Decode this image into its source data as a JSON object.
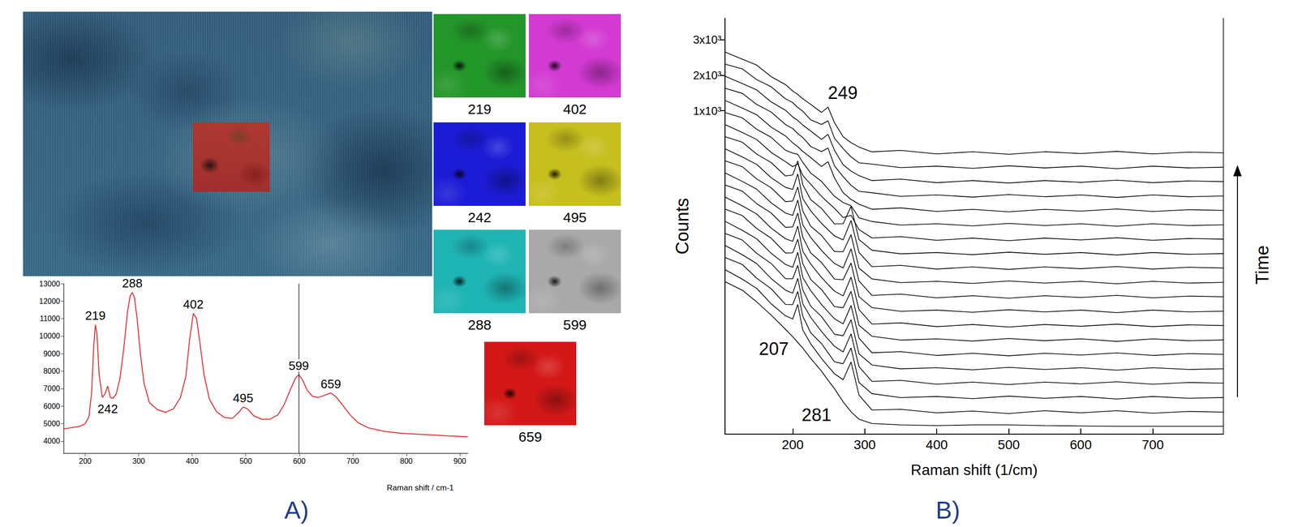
{
  "chart_data": [
    {
      "panel": "A)",
      "type": "line",
      "color": "#e32b2b",
      "x": [
        160,
        170,
        180,
        190,
        200,
        207,
        212,
        216,
        219,
        222,
        226,
        232,
        237,
        242,
        247,
        252,
        258,
        265,
        272,
        279,
        284,
        288,
        292,
        297,
        303,
        310,
        320,
        335,
        350,
        365,
        378,
        388,
        395,
        402,
        408,
        414,
        422,
        432,
        445,
        460,
        475,
        487,
        495,
        503,
        515,
        530,
        545,
        560,
        572,
        584,
        593,
        599,
        606,
        615,
        625,
        635,
        645,
        659,
        668,
        680,
        695,
        710,
        730,
        760,
        790,
        820,
        850,
        880,
        915
      ],
      "values": [
        4700,
        4750,
        4800,
        4850,
        5000,
        5400,
        6800,
        9500,
        10650,
        10100,
        7800,
        6500,
        6700,
        7150,
        6500,
        6450,
        6700,
        7600,
        9300,
        11400,
        12300,
        12500,
        12200,
        11000,
        9000,
        7300,
        6200,
        5800,
        5650,
        5850,
        6500,
        7700,
        9800,
        11300,
        11000,
        9700,
        7800,
        6400,
        5700,
        5350,
        5300,
        5650,
        5950,
        5850,
        5450,
        5250,
        5250,
        5500,
        6100,
        7000,
        7600,
        7800,
        7500,
        6900,
        6550,
        6500,
        6600,
        6750,
        6550,
        6100,
        5500,
        5050,
        4750,
        4550,
        4450,
        4400,
        4350,
        4300,
        4250
      ],
      "xlim": [
        160,
        915
      ],
      "xticks": [
        200,
        300,
        400,
        500,
        600,
        700,
        800,
        900
      ],
      "ylim": [
        3300,
        13000
      ],
      "yticks": [
        4000,
        5000,
        6000,
        7000,
        8000,
        9000,
        10000,
        11000,
        12000,
        13000
      ],
      "x_label": "Raman shift / cm-1",
      "peak_labels": [
        219,
        242,
        288,
        402,
        495,
        599,
        659
      ],
      "vline": 599,
      "maps": [
        {
          "shift": 219,
          "color": "#23962a"
        },
        {
          "shift": 402,
          "color": "#d23ad2"
        },
        {
          "shift": 242,
          "color": "#1c1cd6"
        },
        {
          "shift": 495,
          "color": "#c6bf1e"
        },
        {
          "shift": 288,
          "color": "#1fb4b4"
        },
        {
          "shift": 599,
          "color": "#a9a9a9"
        },
        {
          "shift": 659,
          "color": "#d41818"
        }
      ]
    },
    {
      "panel": "B)",
      "type": "line",
      "color": "#000000",
      "x": [
        106,
        130,
        150,
        170,
        190,
        200,
        207,
        214,
        225,
        240,
        249,
        258,
        270,
        281,
        292,
        310,
        350,
        400,
        450,
        500,
        550,
        600,
        650,
        700,
        750,
        798
      ],
      "series": [
        {
          "values": [
            -3810,
            -4050,
            -4380,
            -4750,
            -5150,
            -5360,
            -5520,
            -5680,
            -5970,
            -6330,
            -6580,
            -6820,
            -7190,
            -7470,
            -7680,
            -7800,
            -7840,
            -7860,
            -7840,
            -7840,
            -7860,
            -7870,
            -7880,
            -7880,
            -7880,
            -7880
          ]
        },
        {
          "values": [
            -3470,
            -3740,
            -4000,
            -4430,
            -4770,
            -4860,
            -4450,
            -5170,
            -5560,
            -5970,
            -6190,
            -6400,
            -6570,
            -6070,
            -7000,
            -7420,
            -7400,
            -7500,
            -7450,
            -7520,
            -7440,
            -7500,
            -7440,
            -7510,
            -7460,
            -7480
          ]
        },
        {
          "values": [
            -3130,
            -3326,
            -3712,
            -4006,
            -4450,
            -4457,
            -4085,
            -4782,
            -5248,
            -5553,
            -5809,
            -6066,
            -6120,
            -5676,
            -6643,
            -6961,
            -7071,
            -7040,
            -7100,
            -7030,
            -7090,
            -7040,
            -7110,
            -7040,
            -7090,
            -7070
          ]
        },
        {
          "values": [
            -2790,
            -3052,
            -3302,
            -3721,
            -4049,
            -4132,
            -3717,
            -4432,
            -4814,
            -5212,
            -5425,
            -5627,
            -5786,
            -5277,
            -6201,
            -6617,
            -6586,
            -6695,
            -6635,
            -6705,
            -6635,
            -6685,
            -6625,
            -6695,
            -6645,
            -6665
          ]
        },
        {
          "values": [
            -2450,
            -2639,
            -3013,
            -3296,
            -3727,
            -3728,
            -3350,
            -4043,
            -4499,
            -4792,
            -5041,
            -5289,
            -5332,
            -4879,
            -5839,
            -6154,
            -6262,
            -6230,
            -6290,
            -6220,
            -6280,
            -6230,
            -6300,
            -6230,
            -6280,
            -6260
          ]
        },
        {
          "values": [
            -2110,
            -2365,
            -2604,
            -3011,
            -3326,
            -3403,
            -2983,
            -3693,
            -4065,
            -4452,
            -4657,
            -4851,
            -4998,
            -4480,
            -5398,
            -5810,
            -5778,
            -5885,
            -5825,
            -5895,
            -5825,
            -5875,
            -5815,
            -5885,
            -5835,
            -5855
          ]
        },
        {
          "values": [
            -1770,
            -1951,
            -2315,
            -2586,
            -3004,
            -2998,
            -2616,
            -3303,
            -3750,
            -4032,
            -4272,
            -4513,
            -4544,
            -4082,
            -5036,
            -5346,
            -5453,
            -5420,
            -5480,
            -5410,
            -5470,
            -5420,
            -5490,
            -5420,
            -5470,
            -5450
          ]
        },
        {
          "values": [
            -1430,
            -1677,
            -1906,
            -2301,
            -2603,
            -2674,
            -2248,
            -2953,
            -3316,
            -3691,
            -3888,
            -4075,
            -4210,
            -3683,
            -4594,
            -5003,
            -4969,
            -5075,
            -5015,
            -5085,
            -5015,
            -5065,
            -5005,
            -5075,
            -5025,
            -5045
          ]
        },
        {
          "values": [
            -1090,
            -1263,
            -1617,
            -1876,
            -2281,
            -2269,
            -1881,
            -2563,
            -3001,
            -3271,
            -3504,
            -3737,
            -3756,
            -3285,
            -4232,
            -4539,
            -4644,
            -4610,
            -4670,
            -4600,
            -4660,
            -4610,
            -4680,
            -4610,
            -4660,
            -4640
          ]
        },
        {
          "values": [
            -750,
            -989,
            -1208,
            -1592,
            -1880,
            -1944,
            -1514,
            -2213,
            -2567,
            -2931,
            -3120,
            -3299,
            -3423,
            -2886,
            -3791,
            -4195,
            -4160,
            -4265,
            -4205,
            -4275,
            -4205,
            -4255,
            -4195,
            -4265,
            -4215,
            -4235
          ]
        },
        {
          "values": [
            -410,
            -575,
            -919,
            -1167,
            -1559,
            -1540,
            -1146,
            -1823,
            -2253,
            -2510,
            -2736,
            -2961,
            -2969,
            -2488,
            -3429,
            -3732,
            -3836,
            -3800,
            -3860,
            -3790,
            -3850,
            -3800,
            -3870,
            -3800,
            -3850,
            -3830
          ]
        },
        {
          "values": [
            -70,
            -301,
            -510,
            -882,
            -1157,
            -1215,
            -779,
            -1473,
            -1818,
            -2170,
            -2351,
            -2523,
            -2635,
            -2089,
            -2987,
            -3388,
            -3351,
            -3455,
            -3395,
            -3465,
            -3395,
            -3445,
            -3385,
            -3455,
            -3405,
            -3425
          ]
        },
        {
          "values": [
            270,
            113,
            -221,
            -457,
            -836,
            -810,
            -412,
            -1083,
            -1504,
            -1750,
            -1967,
            -2185,
            -2181,
            -1691,
            -2625,
            -2924,
            -3027,
            -2990,
            -3050,
            -2980,
            -3040,
            -2990,
            -3060,
            -2990,
            -3040,
            -3020
          ]
        },
        {
          "values": [
            610,
            387,
            189,
            -172,
            -434,
            -575,
            -494,
            -823,
            -1069,
            -1409,
            -1583,
            -1746,
            -2007,
            -1942,
            -2344,
            -2580,
            -2543,
            -2645,
            -2585,
            -2655,
            -2585,
            -2635,
            -2575,
            -2645,
            -2595,
            -2615
          ]
        },
        {
          "values": [
            950,
            800,
            478,
            253,
            -113,
            -191,
            -227,
            -454,
            -755,
            -989,
            -1199,
            -1408,
            -1583,
            -1674,
            -2012,
            -2117,
            -2218,
            -2180,
            -2240,
            -2170,
            -2230,
            -2180,
            -2250,
            -2180,
            -2230,
            -2210
          ]
        },
        {
          "values": [
            1290,
            1074,
            887,
            538,
            289,
            94,
            -10,
            -144,
            -320,
            -569,
            -435,
            -890,
            -1309,
            -1495,
            -1630,
            -1773,
            -1734,
            -1835,
            -1775,
            -1845,
            -1775,
            -1825,
            -1765,
            -1835,
            -1785,
            -1805
          ]
        },
        {
          "values": [
            1630,
            1488,
            1176,
            963,
            610,
            499,
            357,
            246,
            -6,
            -149,
            -50,
            -552,
            -855,
            -1097,
            -1268,
            -1309,
            -1410,
            -1370,
            -1430,
            -1360,
            -1420,
            -1370,
            -1440,
            -1370,
            -1420,
            -1400
          ]
        },
        {
          "values": [
            1970,
            1762,
            1585,
            1248,
            1012,
            823,
            725,
            596,
            429,
            192,
            334,
            -114,
            -521,
            -698,
            -827,
            -966,
            -925,
            -1025,
            -965,
            -1035,
            -965,
            -1015,
            -955,
            -1025,
            -975,
            -995
          ]
        },
        {
          "values": [
            2310,
            2176,
            1874,
            1673,
            1333,
            1228,
            1092,
            986,
            743,
            612,
            718,
            224,
            -67,
            -300,
            -465,
            -502,
            -601,
            -560,
            -620,
            -550,
            -610,
            -560,
            -630,
            -560,
            -610,
            -590
          ]
        },
        {
          "values": [
            2650,
            2450,
            2283,
            1958,
            1734,
            1553,
            1459,
            1336,
            1177,
            952,
            1102,
            662,
            267,
            99,
            -23,
            -158,
            -117,
            -215,
            -155,
            -225,
            -155,
            -205,
            -145,
            -215,
            -165,
            -185
          ]
        }
      ],
      "xlim": [
        106,
        798
      ],
      "xticks": [
        200,
        300,
        400,
        500,
        600,
        700
      ],
      "ylim": [
        -8100,
        3600
      ],
      "yticks": [
        {
          "value": 1000,
          "label": "1x10³"
        },
        {
          "value": 2000,
          "label": "2x10³"
        },
        {
          "value": 3000,
          "label": "3x10³"
        }
      ],
      "x_label": "Raman shift (1/cm)",
      "y_label": "Counts",
      "annotations": [
        "249",
        "207",
        "281"
      ],
      "arrow_label": "Time"
    }
  ]
}
